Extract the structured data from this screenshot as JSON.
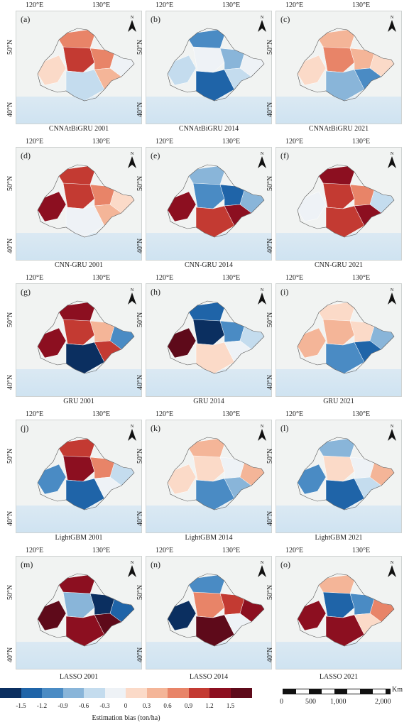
{
  "panels": [
    {
      "label": "(a)",
      "caption": "CNNAtBiGRU 2001"
    },
    {
      "label": "(b)",
      "caption": "CNNAtBiGRU 2014"
    },
    {
      "label": "(c)",
      "caption": "CNNAtBiGRU 2021"
    },
    {
      "label": "(d)",
      "caption": "CNN-GRU 2001"
    },
    {
      "label": "(e)",
      "caption": "CNN-GRU 2014"
    },
    {
      "label": "(f)",
      "caption": "CNN-GRU 2021"
    },
    {
      "label": "(g)",
      "caption": "GRU 2001"
    },
    {
      "label": "(h)",
      "caption": "GRU 2014"
    },
    {
      "label": "(i)",
      "caption": "GRU 2021"
    },
    {
      "label": "(j)",
      "caption": "LightGBM 2001"
    },
    {
      "label": "(k)",
      "caption": "LightGBM 2014"
    },
    {
      "label": "(l)",
      "caption": "LightGBM 2021"
    },
    {
      "label": "(m)",
      "caption": "LASSO 2001"
    },
    {
      "label": "(n)",
      "caption": "LASSO 2014"
    },
    {
      "label": "(o)",
      "caption": "LASSO 2021"
    }
  ],
  "axes": {
    "lon_labels": [
      "120°E",
      "130°E"
    ],
    "lat_labels": [
      "50°N",
      "40°N"
    ],
    "north": "N"
  },
  "legend": {
    "title": "Estimation bias (ton/ha)",
    "ticks": [
      "-1.5",
      "-1.2",
      "-0.9",
      "-0.6",
      "-0.3",
      "0",
      "0.3",
      "0.6",
      "0.9",
      "1.2",
      "1.5"
    ],
    "colors": [
      "#0b2f60",
      "#1f64a8",
      "#4a8bc4",
      "#89b5d9",
      "#c4dcee",
      "#eef2f6",
      "#fbdac8",
      "#f4b598",
      "#e88468",
      "#c33a32",
      "#8c0f20",
      "#5e0a1a"
    ]
  },
  "scalebar": {
    "unit": "Km",
    "labels": [
      "0",
      "500",
      "1,000",
      "2,000"
    ]
  },
  "colors": {
    "sea": "#cfe3f1",
    "land": "#f1f3f2"
  }
}
